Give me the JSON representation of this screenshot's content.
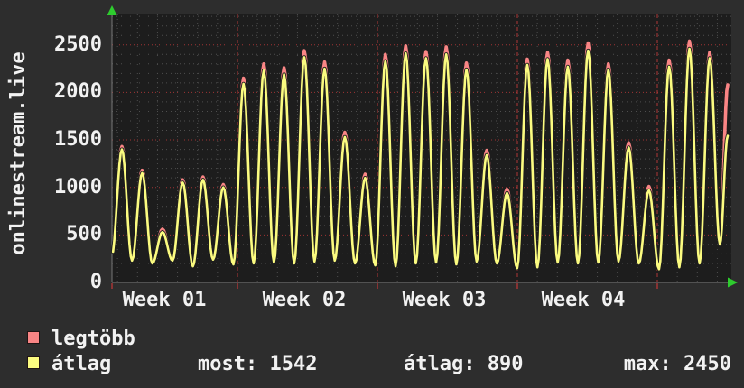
{
  "title": {
    "vertical_label": "onlinestream.live"
  },
  "chart_data": {
    "type": "line",
    "title": "onlinestream.live",
    "ylabel": "onlinestream.live",
    "xlabel": "",
    "ylim": [
      0,
      2820
    ],
    "grid": true,
    "y_ticks": [
      0,
      500,
      1000,
      1500,
      2000,
      2500
    ],
    "y_minor_step": 100,
    "x_tick_labels": [
      "Week 01",
      "Week 02",
      "Week 03",
      "Week 04"
    ],
    "x_unit": "day",
    "legend_position": "bottom-left",
    "series": [
      {
        "name": "legtöbb",
        "color": "#f98585",
        "meaning": "daily maximum viewers"
      },
      {
        "name": "átlag",
        "color": "#fbfb80",
        "meaning": "daily average viewers"
      }
    ],
    "days": [
      {
        "min": 280,
        "max": 1430,
        "avg": 1400
      },
      {
        "min": 230,
        "max": 1180,
        "avg": 1150
      },
      {
        "min": 200,
        "max": 560,
        "avg": 530
      },
      {
        "min": 230,
        "max": 1080,
        "avg": 1050
      },
      {
        "min": 170,
        "max": 1110,
        "avg": 1080
      },
      {
        "min": 240,
        "max": 1030,
        "avg": 1000
      },
      {
        "min": 190,
        "max": 2150,
        "avg": 2090
      },
      {
        "min": 200,
        "max": 2300,
        "avg": 2230
      },
      {
        "min": 210,
        "max": 2260,
        "avg": 2190
      },
      {
        "min": 200,
        "max": 2440,
        "avg": 2370
      },
      {
        "min": 220,
        "max": 2320,
        "avg": 2250
      },
      {
        "min": 230,
        "max": 1580,
        "avg": 1530
      },
      {
        "min": 200,
        "max": 1140,
        "avg": 1100
      },
      {
        "min": 180,
        "max": 2400,
        "avg": 2330
      },
      {
        "min": 170,
        "max": 2490,
        "avg": 2410
      },
      {
        "min": 200,
        "max": 2430,
        "avg": 2360
      },
      {
        "min": 210,
        "max": 2480,
        "avg": 2400
      },
      {
        "min": 190,
        "max": 2310,
        "avg": 2240
      },
      {
        "min": 220,
        "max": 1390,
        "avg": 1340
      },
      {
        "min": 200,
        "max": 980,
        "avg": 940
      },
      {
        "min": 150,
        "max": 2350,
        "avg": 2290
      },
      {
        "min": 160,
        "max": 2420,
        "avg": 2350
      },
      {
        "min": 210,
        "max": 2340,
        "avg": 2270
      },
      {
        "min": 200,
        "max": 2520,
        "avg": 2440
      },
      {
        "min": 210,
        "max": 2300,
        "avg": 2240
      },
      {
        "min": 220,
        "max": 1470,
        "avg": 1420
      },
      {
        "min": 200,
        "max": 1010,
        "avg": 970
      },
      {
        "min": 140,
        "max": 2340,
        "avg": 2270
      },
      {
        "min": 160,
        "max": 2540,
        "avg": 2460
      },
      {
        "min": 200,
        "max": 2420,
        "avg": 2360
      }
    ],
    "final_partial": {
      "min": 400,
      "max": 2080,
      "avg": 1542
    },
    "stats": {
      "most": 1542,
      "atlag": 890,
      "max": 2450
    },
    "colors": {
      "background": "#2d2d2d",
      "plot_background": "#1d1d1d",
      "grid_minor": "#4e4e4e",
      "grid_major": "#a03434",
      "week_boundary": "#b03636",
      "axis": "#787878",
      "arrow": "#2ecc2e",
      "text": "#f2f2f2",
      "series_max": "#f98585",
      "series_avg": "#fbfb80"
    }
  },
  "legend": {
    "items": [
      {
        "label": "legtöbb",
        "color": "#f98585"
      },
      {
        "label": "átlag",
        "color": "#fbfb80"
      }
    ]
  },
  "stats_row": {
    "most": "most: 1542",
    "atlag": "átlag: 890",
    "max": "max: 2450"
  }
}
